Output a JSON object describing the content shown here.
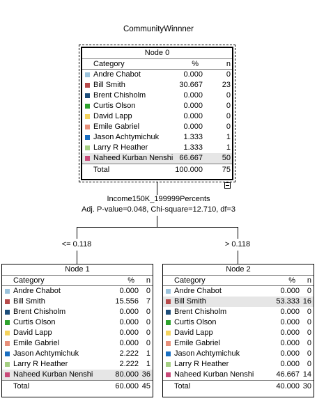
{
  "title": "CommunityWinnner",
  "columns": {
    "category": "Category",
    "percent": "%",
    "n": "n"
  },
  "total_label": "Total",
  "category_colors": [
    "#9cc3dc",
    "#b74a4a",
    "#1d4d7a",
    "#2ea32e",
    "#f5d35c",
    "#e8907a",
    "#1a6fc2",
    "#a5cf83",
    "#c94a79"
  ],
  "split": {
    "variable": "Income150K_199999Percents",
    "stats": "Adj. P-value=0.048, Chi-square=12.710, df=3"
  },
  "edges": {
    "left": "<= 0.118",
    "right": "> 0.118"
  },
  "nodes": [
    {
      "name": "Node 0",
      "rows": [
        {
          "category": "Andre Chabot",
          "percent": "0.000",
          "n": "0"
        },
        {
          "category": "Bill Smith",
          "percent": "30.667",
          "n": "23"
        },
        {
          "category": "Brent Chisholm",
          "percent": "0.000",
          "n": "0"
        },
        {
          "category": "Curtis Olson",
          "percent": "0.000",
          "n": "0"
        },
        {
          "category": "David Lapp",
          "percent": "0.000",
          "n": "0"
        },
        {
          "category": "Emile Gabriel",
          "percent": "0.000",
          "n": "0"
        },
        {
          "category": "Jason Achtymichuk",
          "percent": "1.333",
          "n": "1"
        },
        {
          "category": "Larry R Heather",
          "percent": "1.333",
          "n": "1"
        },
        {
          "category": "Naheed Kurban Nenshi",
          "percent": "66.667",
          "n": "50"
        }
      ],
      "total_percent": "100.000",
      "total_n": "75"
    },
    {
      "name": "Node 1",
      "rows": [
        {
          "category": "Andre Chabot",
          "percent": "0.000",
          "n": "0"
        },
        {
          "category": "Bill Smith",
          "percent": "15.556",
          "n": "7"
        },
        {
          "category": "Brent Chisholm",
          "percent": "0.000",
          "n": "0"
        },
        {
          "category": "Curtis Olson",
          "percent": "0.000",
          "n": "0"
        },
        {
          "category": "David Lapp",
          "percent": "0.000",
          "n": "0"
        },
        {
          "category": "Emile Gabriel",
          "percent": "0.000",
          "n": "0"
        },
        {
          "category": "Jason Achtymichuk",
          "percent": "2.222",
          "n": "1"
        },
        {
          "category": "Larry R Heather",
          "percent": "2.222",
          "n": "1"
        },
        {
          "category": "Naheed Kurban Nenshi",
          "percent": "80.000",
          "n": "36"
        }
      ],
      "total_percent": "60.000",
      "total_n": "45"
    },
    {
      "name": "Node 2",
      "rows": [
        {
          "category": "Andre Chabot",
          "percent": "0.000",
          "n": "0"
        },
        {
          "category": "Bill Smith",
          "percent": "53.333",
          "n": "16"
        },
        {
          "category": "Brent Chisholm",
          "percent": "0.000",
          "n": "0"
        },
        {
          "category": "Curtis Olson",
          "percent": "0.000",
          "n": "0"
        },
        {
          "category": "David Lapp",
          "percent": "0.000",
          "n": "0"
        },
        {
          "category": "Emile Gabriel",
          "percent": "0.000",
          "n": "0"
        },
        {
          "category": "Jason Achtymichuk",
          "percent": "0.000",
          "n": "0"
        },
        {
          "category": "Larry R Heather",
          "percent": "0.000",
          "n": "0"
        },
        {
          "category": "Naheed Kurban Nenshi",
          "percent": "46.667",
          "n": "14"
        }
      ],
      "total_percent": "40.000",
      "total_n": "30"
    }
  ]
}
